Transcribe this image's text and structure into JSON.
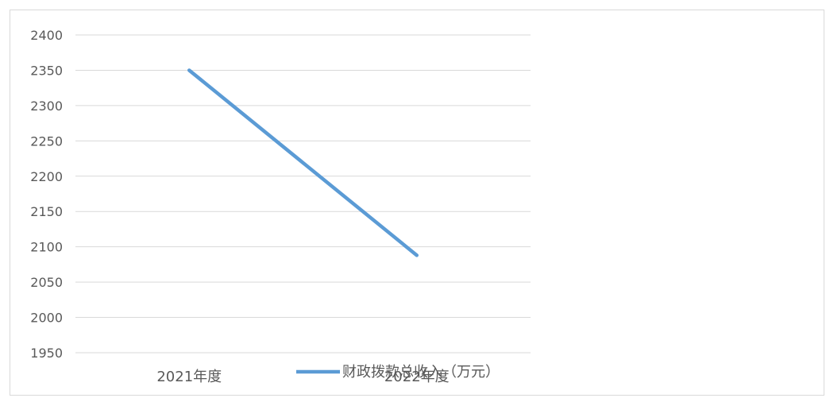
{
  "chart_data": {
    "type": "line",
    "categories": [
      "2021年度",
      "2022年度"
    ],
    "series": [
      {
        "name": "财政拨款总收入（万元）",
        "values": [
          2350,
          2088
        ],
        "color": "#5b9bd5"
      }
    ],
    "ylim": [
      1950,
      2400
    ],
    "yticks": [
      1950,
      2000,
      2050,
      2100,
      2150,
      2200,
      2250,
      2300,
      2350,
      2400
    ],
    "grid": true,
    "legend": "bottom"
  }
}
